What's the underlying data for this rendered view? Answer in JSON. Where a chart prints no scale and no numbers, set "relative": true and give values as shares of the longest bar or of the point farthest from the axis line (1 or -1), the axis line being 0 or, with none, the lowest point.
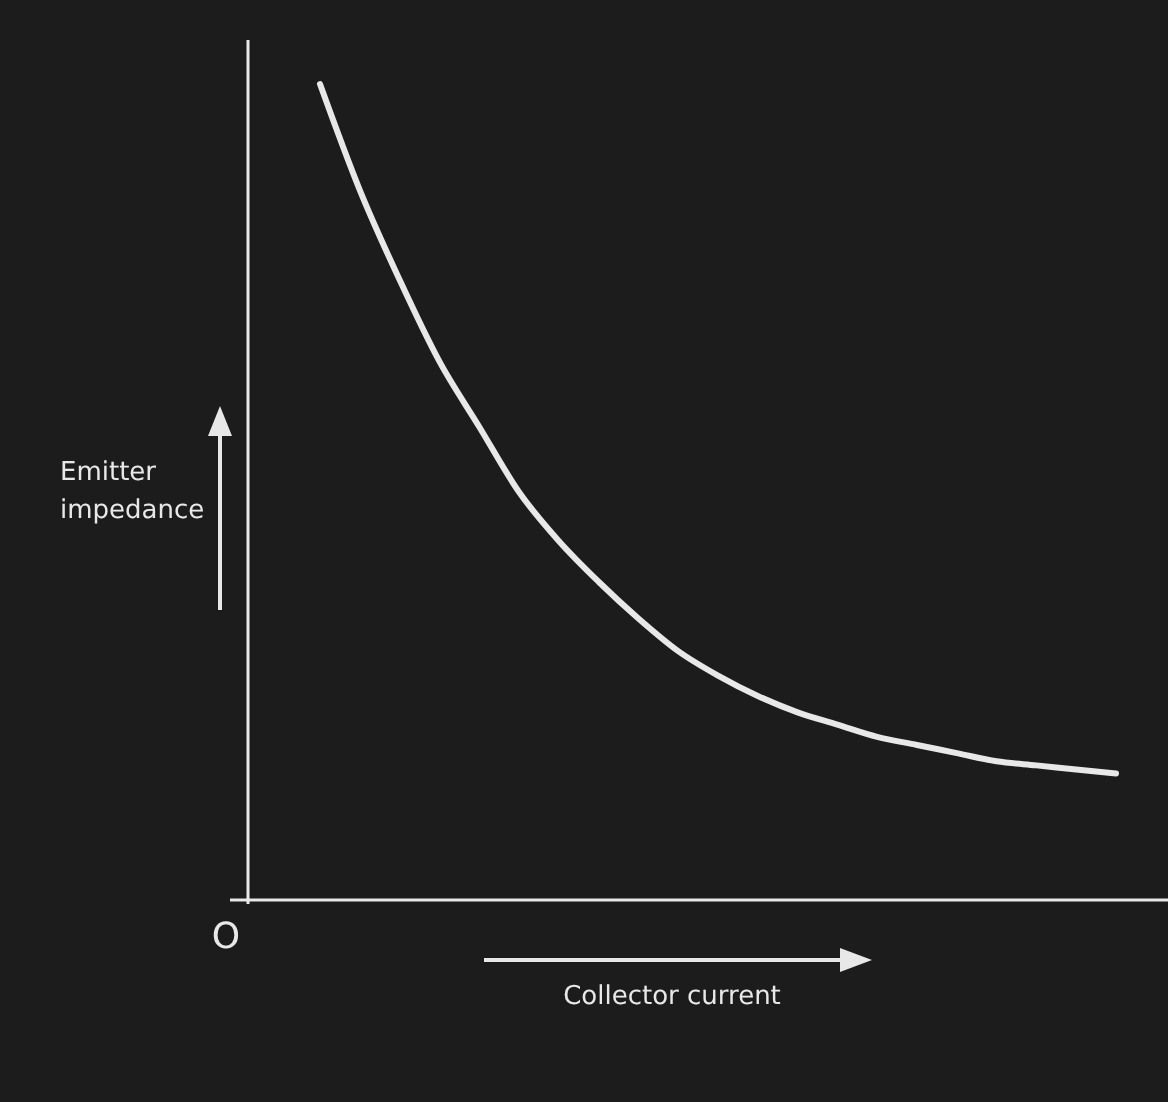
{
  "chart_data": {
    "type": "line",
    "relative": true,
    "xlabel": "Collector current",
    "ylabel": "Emitter impedance",
    "annotations": [
      "O"
    ],
    "categories": [
      null,
      null,
      null,
      null,
      null,
      null,
      null,
      null,
      null,
      null,
      null,
      null,
      null,
      null,
      null,
      null,
      null,
      null,
      null,
      null,
      null
    ],
    "series": [
      {
        "color": "#e8e8e8",
        "values": [
          1.0,
          0.87,
          0.76,
          0.66,
          0.58,
          0.5,
          0.44,
          0.39,
          0.345,
          0.305,
          0.275,
          0.25,
          0.23,
          0.215,
          0.2,
          0.19,
          0.18,
          0.17,
          0.165,
          0.16,
          0.155
        ]
      }
    ]
  }
}
